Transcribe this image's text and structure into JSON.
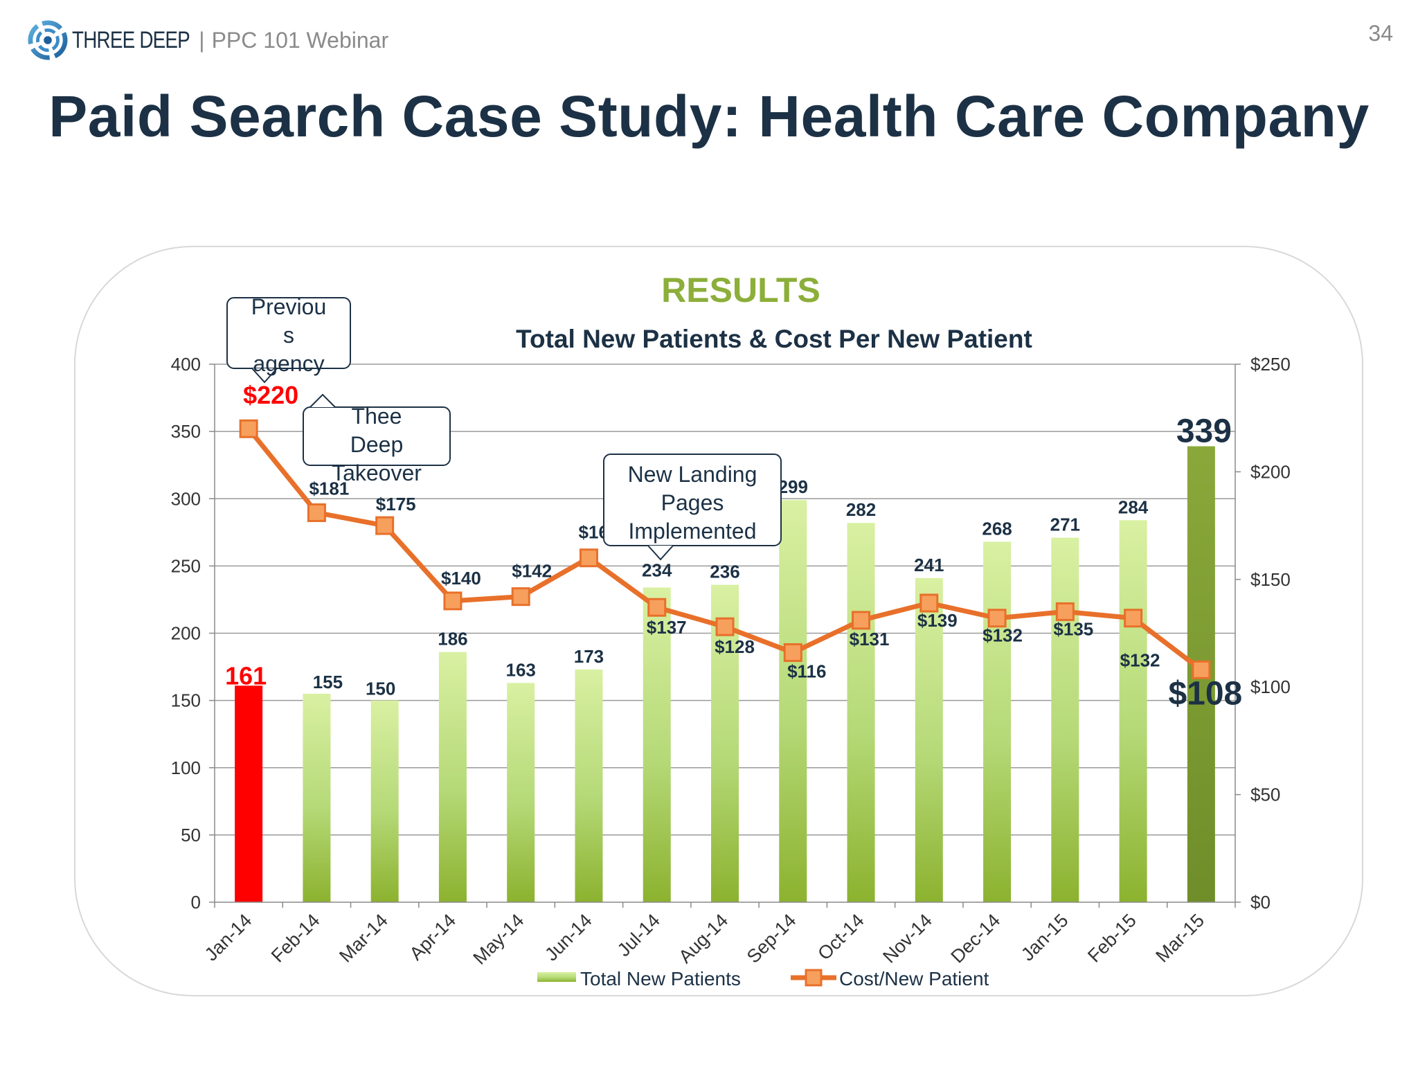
{
  "header": {
    "brand": "THREE DEEP",
    "separator": "|",
    "subtitle": "PPC 101 Webinar",
    "slide_number": "34"
  },
  "slide": {
    "title": "Paid Search Case Study: Health Care Company"
  },
  "colors": {
    "title": "#1c3145",
    "results": "#8cae3a",
    "bar_highlight": "#ff0000",
    "bar_last": "#7f9e34",
    "line": "#e8702a",
    "marker": "#f7a05e"
  },
  "chart_data": {
    "type": "bar",
    "heading": "RESULTS",
    "title": "Total New Patients & Cost Per New Patient",
    "categories": [
      "Jan-14",
      "Feb-14",
      "Mar-14",
      "Apr-14",
      "May-14",
      "Jun-14",
      "Jul-14",
      "Aug-14",
      "Sep-14",
      "Oct-14",
      "Nov-14",
      "Dec-14",
      "Jan-15",
      "Feb-15",
      "Mar-15"
    ],
    "series": [
      {
        "name": "Total New Patients",
        "type": "bar",
        "axis": "left",
        "values": [
          161,
          155,
          150,
          186,
          163,
          173,
          234,
          236,
          299,
          282,
          241,
          268,
          271,
          284,
          339
        ],
        "labels": [
          "161",
          "155",
          "150",
          "186",
          "163",
          "173",
          "234",
          "236",
          "299",
          "282",
          "241",
          "268",
          "271",
          "284",
          "339"
        ]
      },
      {
        "name": "Cost/New Patient",
        "type": "line",
        "axis": "right",
        "values": [
          220,
          181,
          175,
          140,
          142,
          160,
          137,
          128,
          116,
          131,
          139,
          132,
          135,
          132,
          108
        ],
        "labels": [
          "$220",
          "$181",
          "$175",
          "$140",
          "$142",
          "$160",
          "$137",
          "$128",
          "$116",
          "$131",
          "$139",
          "$132",
          "$135",
          "$132",
          "$108"
        ]
      }
    ],
    "y_left": {
      "ylim": [
        0,
        400
      ],
      "ticks": [
        "0",
        "50",
        "100",
        "150",
        "200",
        "250",
        "300",
        "350",
        "400"
      ]
    },
    "y_right": {
      "ylim": [
        0,
        250
      ],
      "ticks": [
        "$0",
        "$50",
        "$100",
        "$150",
        "$200",
        "$250"
      ]
    },
    "grid": true,
    "legend": "bottom",
    "annotations": [
      {
        "text": "Previou s agency",
        "lines": [
          "Previou",
          "s",
          "agency"
        ],
        "category": "Jan-14"
      },
      {
        "text": "Thee Deep Takeover",
        "lines": [
          "Thee",
          "Deep",
          "Takeover"
        ],
        "category": "Feb-14"
      },
      {
        "text": "New Landing Pages Implemented",
        "lines": [
          "New Landing",
          "Pages",
          "Implemented"
        ],
        "category": "Jul-14"
      }
    ]
  }
}
